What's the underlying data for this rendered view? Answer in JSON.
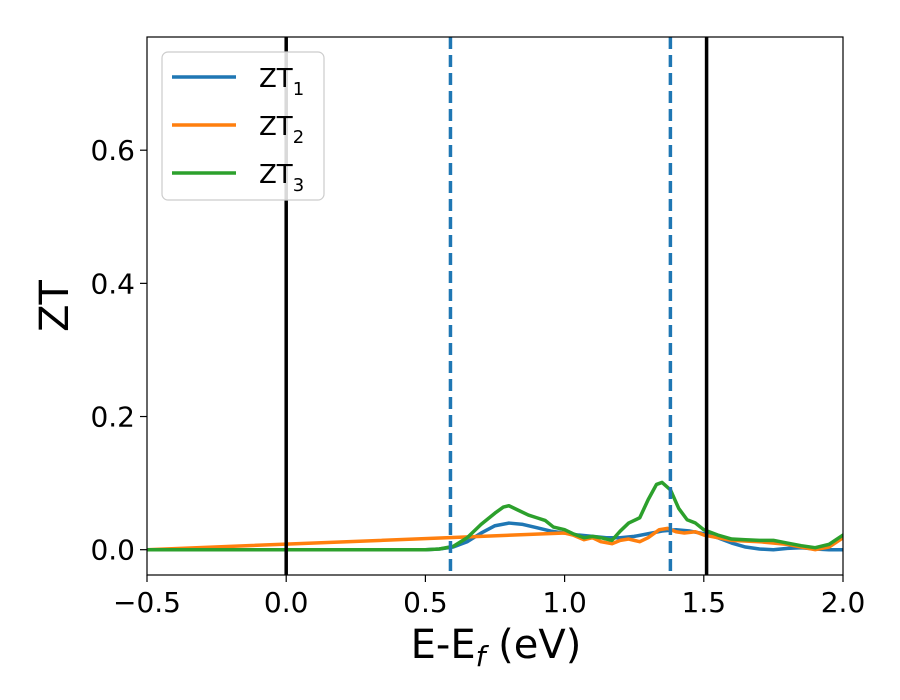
{
  "chart_data": {
    "type": "line",
    "xlabel": "E-E",
    "xlabel_sub": "f",
    "xlabel_unit": " (eV)",
    "ylabel": "ZT",
    "xlim": [
      -0.5,
      2.0
    ],
    "ylim": [
      -0.038,
      0.77
    ],
    "x_ticks": [
      -0.5,
      0.0,
      0.5,
      1.0,
      1.5,
      2.0
    ],
    "x_tick_labels": [
      "−0.5",
      "0.0",
      "0.5",
      "1.0",
      "1.5",
      "2.0"
    ],
    "y_ticks": [
      0.0,
      0.2,
      0.4,
      0.6
    ],
    "y_tick_labels": [
      "0.0",
      "0.2",
      "0.4",
      "0.6"
    ],
    "grid": false,
    "legend_position": "top-left",
    "vlines": [
      {
        "x": 0.0,
        "style": "solid",
        "color": "#000000"
      },
      {
        "x": 1.51,
        "style": "solid",
        "color": "#000000"
      },
      {
        "x": 0.59,
        "style": "dashed",
        "color": "#1f77b4"
      },
      {
        "x": 1.38,
        "style": "dashed",
        "color": "#1f77b4"
      }
    ],
    "series": [
      {
        "name": "ZT",
        "subscript": "1",
        "color": "#1f77b4",
        "points": [
          [
            -0.5,
            0
          ],
          [
            0.5,
            0
          ],
          [
            0.55,
            0.001
          ],
          [
            0.6,
            0.004
          ],
          [
            0.65,
            0.012
          ],
          [
            0.7,
            0.025
          ],
          [
            0.75,
            0.036
          ],
          [
            0.8,
            0.04
          ],
          [
            0.85,
            0.038
          ],
          [
            0.9,
            0.033
          ],
          [
            0.95,
            0.028
          ],
          [
            1.0,
            0.025
          ],
          [
            1.05,
            0.022
          ],
          [
            1.1,
            0.02
          ],
          [
            1.15,
            0.018
          ],
          [
            1.2,
            0.018
          ],
          [
            1.25,
            0.02
          ],
          [
            1.3,
            0.024
          ],
          [
            1.35,
            0.028
          ],
          [
            1.4,
            0.03
          ],
          [
            1.45,
            0.028
          ],
          [
            1.5,
            0.024
          ],
          [
            1.55,
            0.018
          ],
          [
            1.6,
            0.01
          ],
          [
            1.65,
            0.004
          ],
          [
            1.7,
            0.001
          ],
          [
            1.75,
            0.0
          ],
          [
            1.8,
            0.002
          ],
          [
            1.85,
            0.003
          ],
          [
            1.9,
            0.001
          ],
          [
            1.95,
            0.0
          ],
          [
            2.0,
            0.0
          ]
        ]
      },
      {
        "name": "ZT",
        "subscript": "2",
        "color": "#ff7f0e",
        "points": [
          [
            -0.5,
            0
          ],
          [
            1.0,
            0.025
          ],
          [
            1.03,
            0.022
          ],
          [
            1.07,
            0.015
          ],
          [
            1.1,
            0.018
          ],
          [
            1.13,
            0.012
          ],
          [
            1.17,
            0.009
          ],
          [
            1.2,
            0.014
          ],
          [
            1.23,
            0.016
          ],
          [
            1.27,
            0.012
          ],
          [
            1.3,
            0.018
          ],
          [
            1.34,
            0.03
          ],
          [
            1.37,
            0.032
          ],
          [
            1.4,
            0.027
          ],
          [
            1.43,
            0.025
          ],
          [
            1.47,
            0.027
          ],
          [
            1.5,
            0.022
          ],
          [
            1.55,
            0.018
          ],
          [
            1.6,
            0.014
          ],
          [
            1.7,
            0.012
          ],
          [
            1.8,
            0.008
          ],
          [
            1.85,
            0.004
          ],
          [
            1.9,
            0.0
          ],
          [
            1.95,
            0.004
          ],
          [
            2.0,
            0.018
          ]
        ]
      },
      {
        "name": "ZT",
        "subscript": "3",
        "color": "#2ca02c",
        "points": [
          [
            -0.5,
            0
          ],
          [
            0.5,
            0
          ],
          [
            0.55,
            0.001
          ],
          [
            0.6,
            0.005
          ],
          [
            0.65,
            0.018
          ],
          [
            0.7,
            0.038
          ],
          [
            0.75,
            0.055
          ],
          [
            0.78,
            0.064
          ],
          [
            0.8,
            0.066
          ],
          [
            0.83,
            0.06
          ],
          [
            0.87,
            0.052
          ],
          [
            0.9,
            0.048
          ],
          [
            0.93,
            0.044
          ],
          [
            0.96,
            0.034
          ],
          [
            1.0,
            0.03
          ],
          [
            1.03,
            0.024
          ],
          [
            1.07,
            0.018
          ],
          [
            1.1,
            0.02
          ],
          [
            1.13,
            0.018
          ],
          [
            1.17,
            0.014
          ],
          [
            1.2,
            0.028
          ],
          [
            1.23,
            0.04
          ],
          [
            1.27,
            0.048
          ],
          [
            1.3,
            0.075
          ],
          [
            1.33,
            0.098
          ],
          [
            1.35,
            0.101
          ],
          [
            1.38,
            0.09
          ],
          [
            1.41,
            0.062
          ],
          [
            1.44,
            0.045
          ],
          [
            1.47,
            0.04
          ],
          [
            1.5,
            0.03
          ],
          [
            1.55,
            0.022
          ],
          [
            1.6,
            0.016
          ],
          [
            1.65,
            0.015
          ],
          [
            1.7,
            0.014
          ],
          [
            1.75,
            0.014
          ],
          [
            1.8,
            0.01
          ],
          [
            1.85,
            0.006
          ],
          [
            1.9,
            0.003
          ],
          [
            1.95,
            0.008
          ],
          [
            2.0,
            0.022
          ]
        ]
      }
    ]
  }
}
